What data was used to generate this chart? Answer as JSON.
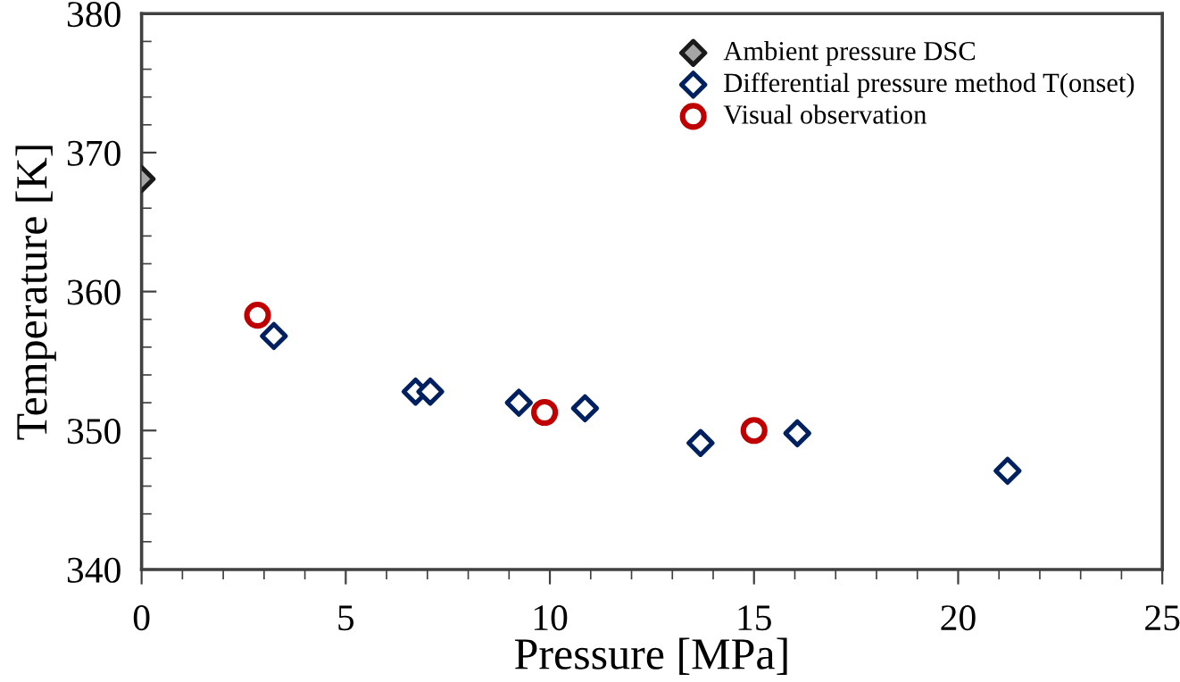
{
  "chart_data": {
    "type": "scatter",
    "xlabel": "Pressure [MPa]",
    "ylabel": "Temperature [K]",
    "xlim": [
      0,
      25
    ],
    "ylim": [
      340,
      380
    ],
    "xticks": [
      0,
      5,
      10,
      15,
      20,
      25
    ],
    "yticks": [
      340,
      350,
      360,
      370,
      380
    ],
    "grid": false,
    "legend": "top right",
    "series": [
      {
        "name": "Ambient pressure DSC",
        "color": "#a6a6a6",
        "marker": "diamond",
        "x": [
          0
        ],
        "values": [
          368.1
        ]
      },
      {
        "name": "Differential pressure method T(onset)",
        "color": "#002060",
        "marker": "diamond",
        "x": [
          3.24,
          6.71,
          7.07,
          9.24,
          10.86,
          13.69,
          16.06,
          21.21
        ],
        "values": [
          356.8,
          352.8,
          352.8,
          352.0,
          351.6,
          349.1,
          349.8,
          347.1
        ]
      },
      {
        "name": "Visual observation",
        "color": "#c00000",
        "marker": "circle",
        "x": [
          2.84,
          9.87,
          15.0
        ],
        "values": [
          358.3,
          351.3,
          350.0
        ]
      }
    ]
  }
}
